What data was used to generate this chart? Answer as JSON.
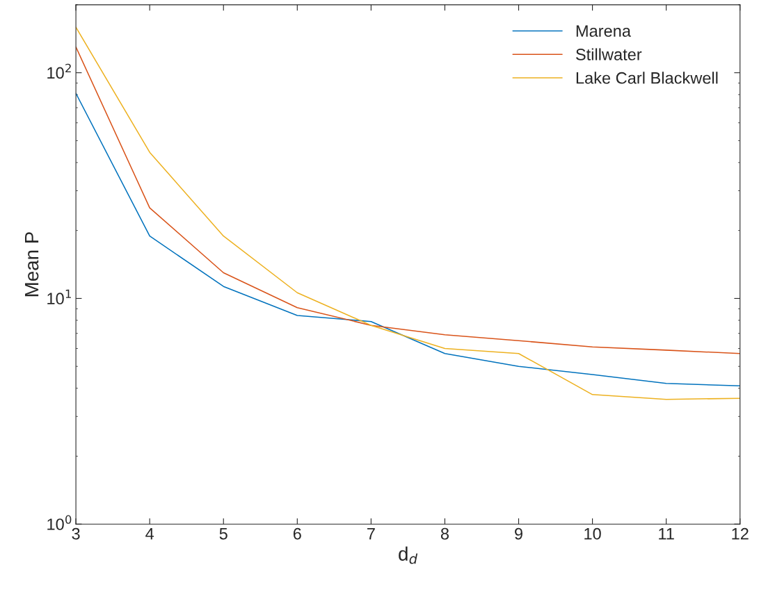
{
  "chart_data": {
    "type": "line",
    "xlabel": "d$_{d}$",
    "ylabel": "Mean P",
    "x": [
      3,
      4,
      5,
      6,
      7,
      8,
      9,
      10,
      11,
      12
    ],
    "series": [
      {
        "name": "Marena",
        "color": "#0072bd",
        "values": [
          81,
          18.9,
          11.3,
          8.4,
          7.9,
          5.7,
          5.0,
          4.6,
          4.2,
          4.1
        ]
      },
      {
        "name": "Stillwater",
        "color": "#d95319",
        "values": [
          130,
          25.2,
          13.0,
          9.1,
          7.6,
          6.9,
          6.5,
          6.1,
          5.9,
          5.7
        ]
      },
      {
        "name": "Lake Carl Blackwell",
        "color": "#edb120",
        "values": [
          159,
          44.4,
          18.9,
          10.6,
          7.6,
          6.0,
          5.7,
          3.75,
          3.57,
          3.61
        ]
      }
    ],
    "log": "y",
    "xlim": [
      3,
      12
    ],
    "ylim": [
      1,
      200
    ],
    "xticks": [
      3,
      4,
      5,
      6,
      7,
      8,
      9,
      10,
      11,
      12
    ],
    "yticks": [
      {
        "value": 1,
        "label": "10$^{0}$"
      },
      {
        "value": 10,
        "label": "10$^{1}$"
      },
      {
        "value": 100,
        "label": "10$^{2}$"
      }
    ],
    "grid": false,
    "legend": "top right",
    "marker": "none",
    "line_style": "solid"
  }
}
